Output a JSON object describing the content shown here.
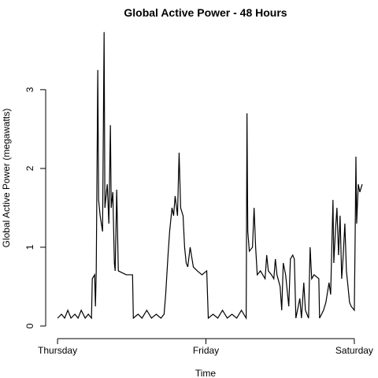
{
  "chart_data": {
    "type": "line",
    "title": "Global Active Power - 48 Hours",
    "x_label": "Time",
    "y_label": "Global Active Power (megawatts)",
    "x": [
      0,
      0.64,
      1.15,
      1.66,
      2.17,
      2.81,
      3.32,
      3.83,
      4.47,
      4.98,
      5.49,
      5.62,
      6.0,
      6.13,
      6.26,
      6.51,
      6.64,
      6.89,
      7.28,
      7.53,
      7.66,
      8.04,
      8.3,
      8.55,
      8.68,
      8.94,
      9.19,
      9.32,
      9.57,
      9.83,
      11.11,
      12.13,
      12.26,
      13.02,
      13.66,
      14.43,
      15.19,
      15.96,
      16.72,
      17.23,
      17.49,
      17.87,
      18.13,
      18.51,
      18.77,
      19.02,
      19.4,
      19.66,
      19.91,
      20.3,
      20.55,
      20.81,
      21.06,
      21.45,
      21.96,
      22.6,
      23.36,
      24.13,
      24.38,
      25.15,
      25.91,
      26.68,
      27.45,
      28.21,
      28.98,
      29.74,
      30.51,
      30.64,
      30.77,
      31.02,
      31.53,
      31.79,
      32.04,
      32.3,
      32.81,
      33.19,
      33.57,
      33.83,
      34.09,
      34.6,
      34.98,
      35.23,
      35.49,
      36.0,
      36.26,
      36.51,
      36.89,
      37.4,
      37.66,
      38.04,
      38.3,
      38.55,
      39.19,
      39.45,
      39.83,
      40.09,
      40.6,
      40.85,
      41.11,
      41.49,
      42.26,
      42.38,
      43.02,
      43.4,
      43.91,
      44.17,
      44.55,
      44.68,
      44.94,
      45.19,
      45.45,
      45.7,
      45.96,
      46.21,
      46.47,
      46.72,
      46.98,
      47.23,
      47.49,
      48.0,
      48.13,
      48.26,
      48.38,
      48.64,
      48.89,
      49.28
    ],
    "series": [
      {
        "name": "Global Active Power",
        "color": "#000000",
        "values": [
          0.1,
          0.15,
          0.1,
          0.2,
          0.1,
          0.15,
          0.1,
          0.2,
          0.1,
          0.15,
          0.1,
          0.6,
          0.65,
          0.25,
          0.7,
          3.25,
          1.6,
          1.4,
          1.2,
          3.73,
          1.5,
          1.8,
          1.3,
          2.55,
          1.5,
          1.7,
          0.8,
          0.7,
          1.73,
          0.7,
          0.65,
          0.65,
          0.1,
          0.15,
          0.1,
          0.2,
          0.1,
          0.15,
          0.1,
          0.15,
          0.4,
          0.9,
          1.2,
          1.5,
          1.4,
          1.65,
          1.4,
          2.2,
          1.5,
          1.4,
          1.0,
          0.8,
          0.75,
          1.0,
          0.75,
          0.7,
          0.65,
          0.7,
          0.1,
          0.15,
          0.1,
          0.2,
          0.1,
          0.15,
          0.1,
          0.2,
          0.1,
          2.7,
          1.2,
          0.95,
          1.0,
          1.5,
          1.0,
          0.65,
          0.7,
          0.65,
          0.6,
          0.9,
          0.7,
          0.65,
          0.6,
          0.85,
          0.65,
          0.5,
          0.2,
          0.8,
          0.65,
          0.25,
          0.85,
          0.9,
          0.85,
          0.1,
          0.35,
          0.1,
          0.55,
          0.2,
          0.1,
          1.0,
          0.6,
          0.65,
          0.6,
          0.1,
          0.2,
          0.3,
          0.55,
          0.4,
          1.6,
          0.8,
          1.2,
          1.5,
          0.9,
          1.4,
          0.6,
          0.9,
          1.3,
          0.7,
          0.5,
          0.3,
          0.25,
          0.2,
          1.1,
          2.15,
          1.3,
          1.8,
          1.7,
          1.8
        ]
      }
    ],
    "xlim": [
      -1.92,
      49.92
    ],
    "xticks": [
      {
        "value": 0,
        "label": "Thursday"
      },
      {
        "value": 24,
        "label": "Friday"
      },
      {
        "value": 48,
        "label": "Saturday"
      }
    ],
    "ylim": [
      -0.07,
      3.88
    ],
    "yticks": [
      0,
      1,
      2,
      3
    ]
  }
}
